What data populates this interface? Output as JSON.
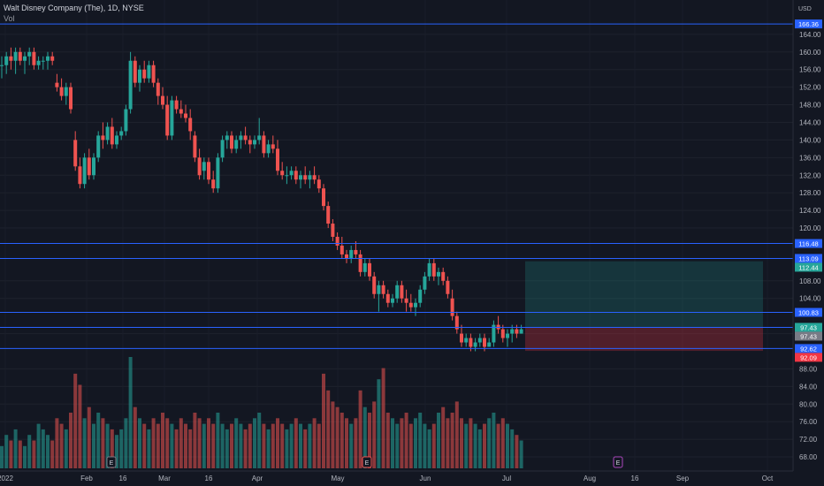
{
  "legend": {
    "title": "Walt Disney Company (The), 1D, NYSE",
    "vol_label": "Vol"
  },
  "currency": "USD",
  "chart_data": {
    "type": "candlestick",
    "title": "Walt Disney Company (The), 1D, NYSE",
    "ylim": [
      66,
      171
    ],
    "y_ticks": [
      68,
      72,
      76,
      80,
      84,
      88,
      96,
      104,
      108,
      120,
      124,
      128,
      132,
      136,
      140,
      144,
      148,
      152,
      156,
      160,
      164
    ],
    "x_ticks": [
      "2022",
      "Feb",
      "16",
      "Mar",
      "16",
      "Apr",
      "May",
      "Jun",
      "Jul",
      "Aug",
      "16",
      "Sep",
      "Oct"
    ],
    "last_price": 97.43,
    "hlines": [
      166.36,
      116.48,
      113.09,
      100.83,
      97.43,
      92.62
    ],
    "price_labels": [
      {
        "value": 166.36,
        "text": "166.36",
        "color": "#2962ff"
      },
      {
        "value": 116.48,
        "text": "116.48",
        "color": "#2962ff"
      },
      {
        "value": 113.09,
        "text": "113.09",
        "color": "#2962ff"
      },
      {
        "value": 112.44,
        "text": "112.44",
        "color": "#26a69a"
      },
      {
        "value": 100.83,
        "text": "100.83",
        "color": "#2962ff"
      },
      {
        "value": 97.43,
        "text": "97.43",
        "color": "#26a69a"
      },
      {
        "value": 97.43,
        "text": "97.43",
        "color": "#787b86"
      },
      {
        "value": 92.62,
        "text": "92.62",
        "color": "#2962ff"
      },
      {
        "value": 92.09,
        "text": "92.09",
        "color": "#f23645"
      }
    ],
    "position": {
      "entry": 97.43,
      "target": 112.44,
      "stop": 92.09
    },
    "earnings_markers": [
      "E",
      "E",
      "E"
    ],
    "colors": {
      "up": "#26a69a",
      "down": "#ef5350",
      "line": "#2962ff"
    },
    "candles": [
      [
        157,
        159,
        154,
        157
      ],
      [
        157,
        160,
        155,
        159
      ],
      [
        159,
        161,
        156,
        158
      ],
      [
        158,
        161,
        155,
        160
      ],
      [
        160,
        161,
        157,
        158
      ],
      [
        158,
        160,
        155,
        159
      ],
      [
        159,
        161,
        157,
        160
      ],
      [
        160,
        161,
        156,
        157
      ],
      [
        157,
        159,
        156,
        158
      ],
      [
        158,
        159,
        156,
        158
      ],
      [
        158,
        160,
        156,
        159
      ],
      [
        159,
        160,
        157,
        158
      ],
      [
        153,
        155,
        151,
        152
      ],
      [
        152,
        154,
        149,
        150
      ],
      [
        150,
        153,
        148,
        152
      ],
      [
        152,
        153,
        146,
        147
      ],
      [
        140,
        142,
        133,
        134
      ],
      [
        134,
        136,
        129,
        130
      ],
      [
        130,
        137,
        129,
        136
      ],
      [
        136,
        138,
        131,
        132
      ],
      [
        132,
        137,
        131,
        136
      ],
      [
        136,
        142,
        135,
        141
      ],
      [
        141,
        144,
        138,
        140
      ],
      [
        140,
        144,
        139,
        143
      ],
      [
        143,
        145,
        138,
        139
      ],
      [
        139,
        142,
        138,
        141
      ],
      [
        141,
        143,
        140,
        142
      ],
      [
        142,
        148,
        141,
        147
      ],
      [
        147,
        160,
        146,
        158
      ],
      [
        158,
        159,
        152,
        153
      ],
      [
        153,
        157,
        151,
        156
      ],
      [
        156,
        158,
        153,
        154
      ],
      [
        154,
        158,
        153,
        157
      ],
      [
        157,
        158,
        152,
        153
      ],
      [
        153,
        154,
        148,
        150
      ],
      [
        150,
        152,
        147,
        148
      ],
      [
        148,
        150,
        140,
        141
      ],
      [
        141,
        150,
        140,
        149
      ],
      [
        149,
        150,
        146,
        147
      ],
      [
        147,
        149,
        145,
        146
      ],
      [
        146,
        148,
        144,
        145
      ],
      [
        145,
        147,
        140,
        142
      ],
      [
        141,
        142,
        135,
        136
      ],
      [
        136,
        138,
        131,
        132
      ],
      [
        133,
        136,
        131,
        135
      ],
      [
        135,
        136,
        130,
        131
      ],
      [
        131,
        133,
        128,
        129
      ],
      [
        129,
        137,
        128,
        136
      ],
      [
        136,
        141,
        135,
        140
      ],
      [
        140,
        142,
        138,
        141
      ],
      [
        141,
        142,
        137,
        138
      ],
      [
        138,
        141,
        137,
        140
      ],
      [
        140,
        142,
        138,
        141
      ],
      [
        141,
        143,
        139,
        140
      ],
      [
        140,
        141,
        137,
        139
      ],
      [
        139,
        141,
        138,
        140
      ],
      [
        140,
        145,
        139,
        141
      ],
      [
        141,
        142,
        136,
        137
      ],
      [
        137,
        140,
        136,
        139
      ],
      [
        139,
        141,
        137,
        138
      ],
      [
        138,
        140,
        132,
        133
      ],
      [
        133,
        135,
        131,
        132
      ],
      [
        132,
        134,
        130,
        132
      ],
      [
        132,
        134,
        131,
        133
      ],
      [
        133,
        134,
        130,
        131
      ],
      [
        131,
        133,
        129,
        132
      ],
      [
        132,
        134,
        130,
        131
      ],
      [
        131,
        133,
        129,
        132
      ],
      [
        132,
        134,
        130,
        131
      ],
      [
        131,
        132,
        128,
        129
      ],
      [
        129,
        130,
        124,
        125
      ],
      [
        125,
        126,
        120,
        121
      ],
      [
        121,
        122,
        117,
        118
      ],
      [
        118,
        119,
        115,
        116
      ],
      [
        116,
        118,
        113,
        114
      ],
      [
        114,
        115,
        112,
        113
      ],
      [
        113,
        116,
        112,
        115
      ],
      [
        115,
        117,
        113,
        114
      ],
      [
        114,
        115,
        109,
        110
      ],
      [
        110,
        113,
        109,
        112
      ],
      [
        112,
        113,
        108,
        109
      ],
      [
        109,
        110,
        104,
        105
      ],
      [
        105,
        108,
        101,
        107
      ],
      [
        107,
        108,
        104,
        105
      ],
      [
        105,
        106,
        102,
        103
      ],
      [
        103,
        105,
        102,
        104
      ],
      [
        104,
        108,
        103,
        107
      ],
      [
        107,
        108,
        103,
        104
      ],
      [
        104,
        106,
        101,
        103
      ],
      [
        103,
        105,
        101,
        102
      ],
      [
        102,
        104,
        100,
        103
      ],
      [
        103,
        107,
        102,
        106
      ],
      [
        106,
        110,
        105,
        109
      ],
      [
        109,
        113,
        108,
        112
      ],
      [
        112,
        113,
        108,
        109
      ],
      [
        109,
        111,
        107,
        110
      ],
      [
        110,
        111,
        107,
        108
      ],
      [
        108,
        109,
        104,
        105
      ],
      [
        104,
        106,
        99,
        100
      ],
      [
        100,
        101,
        96,
        97
      ],
      [
        96,
        98,
        93,
        94
      ],
      [
        94,
        96,
        93,
        95
      ],
      [
        95,
        96,
        92,
        93
      ],
      [
        93,
        95,
        92,
        94
      ],
      [
        94,
        96,
        93,
        95
      ],
      [
        95,
        96,
        92,
        93
      ],
      [
        93,
        95,
        93,
        94
      ],
      [
        94,
        99,
        93,
        98
      ],
      [
        98,
        100,
        96,
        97
      ],
      [
        97,
        98,
        94,
        95
      ],
      [
        95,
        97,
        93,
        96
      ],
      [
        96,
        98,
        94,
        97
      ],
      [
        97,
        98,
        95,
        96
      ],
      [
        96,
        98,
        96,
        97
      ]
    ],
    "volumes": [
      4,
      6,
      5,
      7,
      5,
      4,
      6,
      5,
      8,
      7,
      6,
      5,
      9,
      8,
      7,
      10,
      17,
      15,
      9,
      11,
      8,
      10,
      9,
      8,
      7,
      6,
      7,
      9,
      20,
      11,
      9,
      8,
      7,
      9,
      8,
      10,
      9,
      8,
      7,
      9,
      8,
      7,
      10,
      9,
      8,
      9,
      8,
      10,
      8,
      7,
      8,
      9,
      8,
      7,
      8,
      9,
      10,
      8,
      7,
      8,
      9,
      8,
      7,
      8,
      9,
      8,
      7,
      8,
      9,
      8,
      17,
      14,
      12,
      11,
      10,
      9,
      8,
      9,
      14,
      11,
      10,
      12,
      16,
      18,
      10,
      9,
      8,
      9,
      10,
      8,
      9,
      10,
      8,
      7,
      8,
      10,
      11,
      9,
      10,
      12,
      9,
      8,
      9,
      8,
      7,
      8,
      9,
      10,
      8,
      9,
      8,
      7,
      6,
      5
    ]
  }
}
